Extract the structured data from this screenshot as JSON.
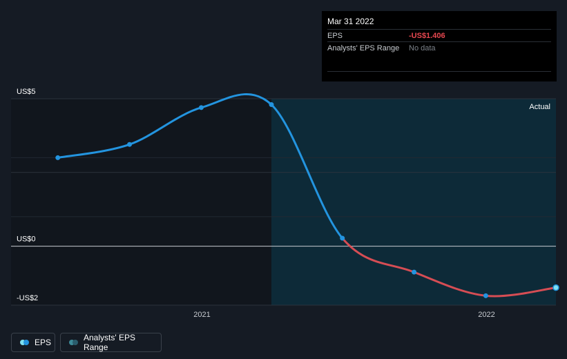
{
  "tooltip": {
    "date": "Mar 31 2022",
    "rows": [
      {
        "label": "EPS",
        "value": "-US$1.406"
      },
      {
        "label": "Analysts' EPS Range",
        "value": "No data"
      }
    ]
  },
  "legend": {
    "eps": "EPS",
    "range": "Analysts' EPS Range"
  },
  "colors": {
    "positive": "#2394df",
    "negative": "#d64d54",
    "forecast_bg": "#0d2a38",
    "past_bg": "#11161d",
    "background": "#151b24"
  },
  "chart_data": {
    "type": "line",
    "series": [
      {
        "name": "EPS",
        "points": [
          {
            "x": "2020-06-30",
            "y": 3.0
          },
          {
            "x": "2020-09-30",
            "y": 3.45
          },
          {
            "x": "2020-12-31",
            "y": 4.7
          },
          {
            "x": "2021-03-31",
            "y": 4.8
          },
          {
            "x": "2021-06-30",
            "y": 0.27
          },
          {
            "x": "2021-09-30",
            "y": -0.88
          },
          {
            "x": "2021-12-31",
            "y": -1.68
          },
          {
            "x": "2022-03-31",
            "y": -1.406
          }
        ]
      }
    ],
    "y_tick_labels": [
      "US$5",
      "US$0",
      "-US$2"
    ],
    "x_tick_labels": [
      "2021",
      "2022"
    ],
    "ylim": [
      -2,
      5
    ],
    "xlim": [
      "2020-05-01",
      "2022-03-31"
    ],
    "region_label": "Actual",
    "gridlines": true
  }
}
